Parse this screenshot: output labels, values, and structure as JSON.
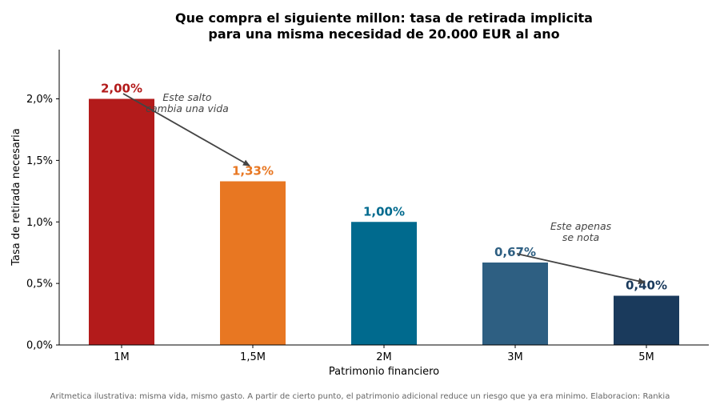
{
  "chart_data": {
    "type": "bar",
    "title_lines": [
      "Que compra el siguiente millon: tasa de retirada implicita",
      "para una misma necesidad de 20.000 EUR al ano"
    ],
    "xlabel": "Patrimonio financiero",
    "ylabel": "Tasa de retirada necesaria",
    "categories": [
      "1M",
      "1,5M",
      "2M",
      "3M",
      "5M"
    ],
    "values": [
      2.0,
      1.33,
      1.0,
      0.67,
      0.4
    ],
    "value_labels": [
      "2,00%",
      "1,33%",
      "1,00%",
      "0,67%",
      "0,40%"
    ],
    "colors": [
      "#b31b1b",
      "#e87722",
      "#006a8e",
      "#2e5f82",
      "#1a3a5c"
    ],
    "ylim": [
      0,
      2.4
    ],
    "yticks": [
      0,
      0.5,
      1.0,
      1.5,
      2.0
    ],
    "ytick_labels": [
      "0,0%",
      "0,5%",
      "1,0%",
      "1,5%",
      "2,0%"
    ],
    "grid": false,
    "annotations": [
      {
        "lines": [
          "Este salto",
          "cambia una vida"
        ],
        "from_category": 0,
        "to_category": 1
      },
      {
        "lines": [
          "Este apenas",
          "se nota"
        ],
        "from_category": 3,
        "to_category": 4
      }
    ]
  },
  "footnote": "Aritmetica ilustrativa: misma vida, mismo gasto. A partir de cierto punto, el patrimonio adicional reduce un riesgo que ya era minimo. Elaboracion: Rankia"
}
